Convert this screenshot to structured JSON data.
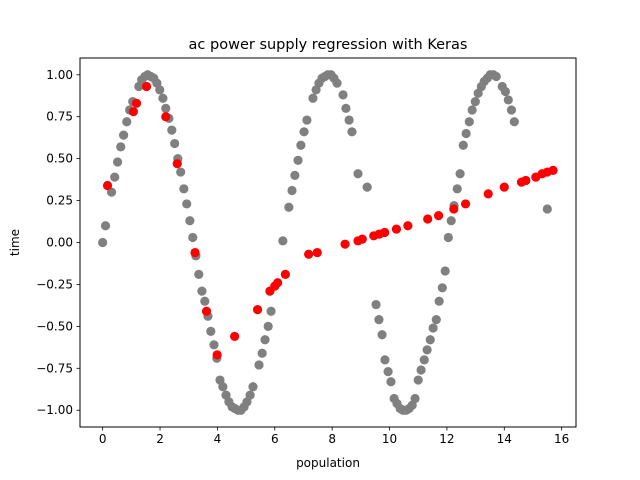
{
  "chart_data": {
    "type": "scatter",
    "title": "ac power supply regression with Keras",
    "xlabel": "population",
    "ylabel": "time",
    "xlim": [
      -0.79,
      16.5
    ],
    "ylim": [
      -1.1,
      1.1
    ],
    "xticks": [
      0,
      2,
      4,
      6,
      8,
      10,
      12,
      14,
      16
    ],
    "xtick_labels": [
      "0",
      "2",
      "4",
      "6",
      "8",
      "10",
      "12",
      "14",
      "16"
    ],
    "yticks": [
      -1.0,
      -0.75,
      -0.5,
      -0.25,
      0.0,
      0.25,
      0.5,
      0.75,
      1.0
    ],
    "ytick_labels": [
      "−1.00",
      "−0.75",
      "−0.50",
      "−0.25",
      "0.00",
      "0.25",
      "0.50",
      "0.75",
      "1.00"
    ],
    "grid": false,
    "series": [
      {
        "color": "#808080",
        "points": [
          [
            0.0,
            0.0
          ],
          [
            0.1,
            0.1
          ],
          [
            0.31,
            0.3
          ],
          [
            0.42,
            0.39
          ],
          [
            0.52,
            0.48
          ],
          [
            0.63,
            0.57
          ],
          [
            0.73,
            0.64
          ],
          [
            0.84,
            0.72
          ],
          [
            0.94,
            0.79
          ],
          [
            1.05,
            0.84
          ],
          [
            1.26,
            0.93
          ],
          [
            1.36,
            0.97
          ],
          [
            1.47,
            0.99
          ],
          [
            1.57,
            1.0
          ],
          [
            1.68,
            0.99
          ],
          [
            1.78,
            0.98
          ],
          [
            1.89,
            0.95
          ],
          [
            1.99,
            0.91
          ],
          [
            2.1,
            0.86
          ],
          [
            2.2,
            0.8
          ],
          [
            2.31,
            0.74
          ],
          [
            2.41,
            0.67
          ],
          [
            2.51,
            0.59
          ],
          [
            2.62,
            0.5
          ],
          [
            2.72,
            0.42
          ],
          [
            2.83,
            0.32
          ],
          [
            2.93,
            0.23
          ],
          [
            3.04,
            0.13
          ],
          [
            3.14,
            0.03
          ],
          [
            3.25,
            -0.08
          ],
          [
            3.35,
            -0.19
          ],
          [
            3.46,
            -0.29
          ],
          [
            3.56,
            -0.35
          ],
          [
            3.67,
            -0.44
          ],
          [
            3.77,
            -0.53
          ],
          [
            3.88,
            -0.61
          ],
          [
            3.98,
            -0.69
          ],
          [
            4.09,
            -0.82
          ],
          [
            4.19,
            -0.86
          ],
          [
            4.3,
            -0.91
          ],
          [
            4.4,
            -0.95
          ],
          [
            4.51,
            -0.98
          ],
          [
            4.61,
            -0.99
          ],
          [
            4.72,
            -1.0
          ],
          [
            4.82,
            -1.0
          ],
          [
            4.93,
            -0.98
          ],
          [
            5.03,
            -0.95
          ],
          [
            5.14,
            -0.91
          ],
          [
            5.24,
            -0.86
          ],
          [
            5.45,
            -0.73
          ],
          [
            5.56,
            -0.66
          ],
          [
            5.66,
            -0.58
          ],
          [
            5.77,
            -0.5
          ],
          [
            5.87,
            -0.41
          ],
          [
            6.28,
            0.01
          ],
          [
            6.49,
            0.21
          ],
          [
            6.6,
            0.31
          ],
          [
            6.7,
            0.4
          ],
          [
            6.81,
            0.49
          ],
          [
            6.91,
            0.58
          ],
          [
            7.02,
            0.66
          ],
          [
            7.12,
            0.73
          ],
          [
            7.33,
            0.86
          ],
          [
            7.44,
            0.91
          ],
          [
            7.54,
            0.95
          ],
          [
            7.65,
            0.98
          ],
          [
            7.75,
            0.99
          ],
          [
            7.85,
            1.0
          ],
          [
            7.96,
            1.0
          ],
          [
            8.06,
            0.98
          ],
          [
            8.17,
            0.95
          ],
          [
            8.38,
            0.88
          ],
          [
            8.48,
            0.8
          ],
          [
            8.59,
            0.73
          ],
          [
            8.69,
            0.66
          ],
          [
            8.9,
            0.41
          ],
          [
            9.22,
            0.33
          ],
          [
            9.53,
            -0.37
          ],
          [
            9.63,
            -0.46
          ],
          [
            9.74,
            -0.55
          ],
          [
            9.84,
            -0.7
          ],
          [
            9.95,
            -0.77
          ],
          [
            10.05,
            -0.83
          ],
          [
            10.16,
            -0.93
          ],
          [
            10.26,
            -0.96
          ],
          [
            10.37,
            -0.99
          ],
          [
            10.47,
            -1.0
          ],
          [
            10.58,
            -1.0
          ],
          [
            10.68,
            -0.99
          ],
          [
            10.79,
            -0.97
          ],
          [
            10.89,
            -0.93
          ],
          [
            11.0,
            -0.82
          ],
          [
            11.1,
            -0.76
          ],
          [
            11.21,
            -0.7
          ],
          [
            11.31,
            -0.64
          ],
          [
            11.42,
            -0.58
          ],
          [
            11.52,
            -0.51
          ],
          [
            11.63,
            -0.46
          ],
          [
            11.73,
            -0.35
          ],
          [
            11.84,
            -0.27
          ],
          [
            11.94,
            -0.17
          ],
          [
            12.05,
            0.03
          ],
          [
            12.15,
            0.13
          ],
          [
            12.25,
            0.22
          ],
          [
            12.36,
            0.32
          ],
          [
            12.46,
            0.41
          ],
          [
            12.57,
            0.58
          ],
          [
            12.67,
            0.65
          ],
          [
            12.78,
            0.72
          ],
          [
            12.88,
            0.79
          ],
          [
            12.99,
            0.84
          ],
          [
            13.09,
            0.89
          ],
          [
            13.2,
            0.93
          ],
          [
            13.3,
            0.96
          ],
          [
            13.41,
            0.98
          ],
          [
            13.51,
            1.0
          ],
          [
            13.62,
            1.0
          ],
          [
            13.72,
            0.99
          ],
          [
            13.93,
            0.93
          ],
          [
            14.04,
            0.9
          ],
          [
            14.14,
            0.85
          ],
          [
            14.25,
            0.79
          ],
          [
            14.35,
            0.72
          ],
          [
            15.5,
            0.2
          ]
        ]
      },
      {
        "color": "#ff0000",
        "points": [
          [
            0.17,
            0.34
          ],
          [
            1.07,
            0.78
          ],
          [
            1.18,
            0.83
          ],
          [
            1.53,
            0.93
          ],
          [
            2.2,
            0.75
          ],
          [
            2.6,
            0.47
          ],
          [
            3.22,
            -0.06
          ],
          [
            3.62,
            -0.41
          ],
          [
            3.99,
            -0.67
          ],
          [
            4.6,
            -0.56
          ],
          [
            5.4,
            -0.4
          ],
          [
            5.83,
            -0.29
          ],
          [
            6.0,
            -0.26
          ],
          [
            6.1,
            -0.24
          ],
          [
            6.37,
            -0.19
          ],
          [
            7.18,
            -0.07
          ],
          [
            7.48,
            -0.06
          ],
          [
            8.45,
            -0.01
          ],
          [
            8.9,
            0.01
          ],
          [
            9.05,
            0.02
          ],
          [
            9.45,
            0.04
          ],
          [
            9.64,
            0.05
          ],
          [
            9.83,
            0.06
          ],
          [
            10.24,
            0.08
          ],
          [
            10.64,
            0.1
          ],
          [
            11.33,
            0.14
          ],
          [
            11.71,
            0.16
          ],
          [
            12.24,
            0.2
          ],
          [
            12.65,
            0.23
          ],
          [
            13.44,
            0.29
          ],
          [
            14.0,
            0.33
          ],
          [
            14.6,
            0.36
          ],
          [
            14.75,
            0.37
          ],
          [
            15.1,
            0.39
          ],
          [
            15.32,
            0.41
          ],
          [
            15.5,
            0.42
          ],
          [
            15.7,
            0.43
          ]
        ]
      }
    ]
  }
}
